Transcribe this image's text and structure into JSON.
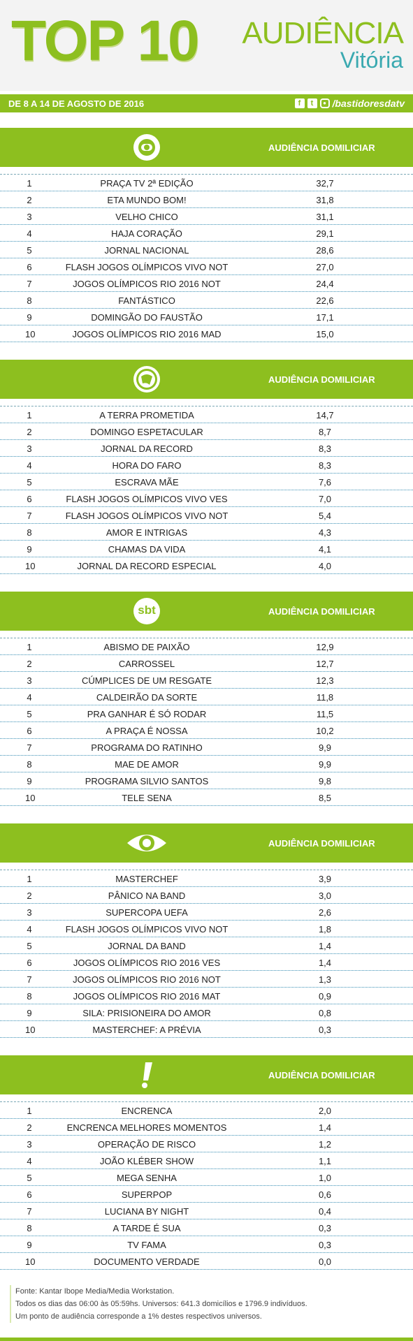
{
  "header": {
    "top_word": "TOP",
    "top_num": "10",
    "aud_line1": "AUDIÊNCIA",
    "aud_line2": "Vitória"
  },
  "datebar": {
    "date": "DE 8 A 14 DE AGOSTO DE 2016",
    "handle": "/bastidoresdatv"
  },
  "colors": {
    "accent": "#8dbf1f",
    "teal": "#3aa9b0"
  },
  "sections": [
    {
      "logo": "globo-logo-icon",
      "title": "AUDIÊNCIA DOMILICIAR",
      "rows": [
        {
          "rank": "1",
          "name": "PRAÇA TV 2ª EDIÇÃO",
          "value": "32,7"
        },
        {
          "rank": "2",
          "name": "ETA MUNDO BOM!",
          "value": "31,8"
        },
        {
          "rank": "3",
          "name": "VELHO CHICO",
          "value": "31,1"
        },
        {
          "rank": "4",
          "name": "HAJA CORAÇÃO",
          "value": "29,1"
        },
        {
          "rank": "5",
          "name": "JORNAL NACIONAL",
          "value": "28,6"
        },
        {
          "rank": "6",
          "name": "FLASH JOGOS OLÍMPICOS VIVO NOT",
          "value": "27,0"
        },
        {
          "rank": "7",
          "name": "JOGOS OLÍMPICOS RIO 2016 NOT",
          "value": "24,4"
        },
        {
          "rank": "8",
          "name": "FANTÁSTICO",
          "value": "22,6"
        },
        {
          "rank": "9",
          "name": "DOMINGÃO DO FAUSTÃO",
          "value": "17,1"
        },
        {
          "rank": "10",
          "name": "JOGOS OLÍMPICOS RIO 2016 MAD",
          "value": "15,0"
        }
      ]
    },
    {
      "logo": "record-logo-icon",
      "title": "AUDIÊNCIA DOMILICIAR",
      "rows": [
        {
          "rank": "1",
          "name": "A TERRA PROMETIDA",
          "value": "14,7"
        },
        {
          "rank": "2",
          "name": "DOMINGO ESPETACULAR",
          "value": "8,7"
        },
        {
          "rank": "3",
          "name": "JORNAL DA RECORD",
          "value": "8,3"
        },
        {
          "rank": "4",
          "name": "HORA DO FARO",
          "value": "8,3"
        },
        {
          "rank": "5",
          "name": "ESCRAVA MÃE",
          "value": "7,6"
        },
        {
          "rank": "6",
          "name": "FLASH JOGOS OLÍMPICOS VIVO VES",
          "value": "7,0"
        },
        {
          "rank": "7",
          "name": "FLASH JOGOS OLÍMPICOS VIVO NOT",
          "value": "5,4"
        },
        {
          "rank": "8",
          "name": "AMOR E INTRIGAS",
          "value": "4,3"
        },
        {
          "rank": "9",
          "name": "CHAMAS DA VIDA",
          "value": "4,1"
        },
        {
          "rank": "10",
          "name": "JORNAL DA RECORD ESPECIAL",
          "value": "4,0"
        }
      ]
    },
    {
      "logo": "sbt-logo-icon",
      "logo_text": "sbt",
      "title": "AUDIÊNCIA DOMILICIAR",
      "rows": [
        {
          "rank": "1",
          "name": "ABISMO DE PAIXÃO",
          "value": "12,9"
        },
        {
          "rank": "2",
          "name": "CARROSSEL",
          "value": "12,7"
        },
        {
          "rank": "3",
          "name": "CÚMPLICES DE UM RESGATE",
          "value": "12,3"
        },
        {
          "rank": "4",
          "name": "CALDEIRÃO DA SORTE",
          "value": "11,8"
        },
        {
          "rank": "5",
          "name": "PRA GANHAR É SÓ RODAR",
          "value": "11,5"
        },
        {
          "rank": "6",
          "name": "A PRAÇA É NOSSA",
          "value": "10,2"
        },
        {
          "rank": "7",
          "name": "PROGRAMA DO RATINHO",
          "value": "9,9"
        },
        {
          "rank": "8",
          "name": "MAE DE AMOR",
          "value": "9,9"
        },
        {
          "rank": "9",
          "name": "PROGRAMA SILVIO SANTOS",
          "value": "9,8"
        },
        {
          "rank": "10",
          "name": "TELE SENA",
          "value": "8,5"
        }
      ]
    },
    {
      "logo": "band-logo-icon",
      "title": "AUDIÊNCIA DOMILICIAR",
      "rows": [
        {
          "rank": "1",
          "name": "MASTERCHEF",
          "value": "3,9"
        },
        {
          "rank": "2",
          "name": "PÂNICO NA BAND",
          "value": "3,0"
        },
        {
          "rank": "3",
          "name": "SUPERCOPA UEFA",
          "value": "2,6"
        },
        {
          "rank": "4",
          "name": "FLASH JOGOS OLÍMPICOS VIVO NOT",
          "value": "1,8"
        },
        {
          "rank": "5",
          "name": "JORNAL DA BAND",
          "value": "1,4"
        },
        {
          "rank": "6",
          "name": "JOGOS OLÍMPICOS RIO 2016 VES",
          "value": "1,4"
        },
        {
          "rank": "7",
          "name": "JOGOS OLÍMPICOS RIO 2016 NOT",
          "value": "1,3"
        },
        {
          "rank": "8",
          "name": "JOGOS OLÍMPICOS RIO 2016 MAT",
          "value": "0,9"
        },
        {
          "rank": "9",
          "name": "SILA: PRISIONEIRA DO AMOR",
          "value": "0,8"
        },
        {
          "rank": "10",
          "name": "MASTERCHEF: A PRÉVIA",
          "value": "0,3"
        }
      ]
    },
    {
      "logo": "redetv-logo-icon",
      "title": "AUDIÊNCIA DOMILICIAR",
      "rows": [
        {
          "rank": "1",
          "name": "ENCRENCA",
          "value": "2,0"
        },
        {
          "rank": "2",
          "name": "ENCRENCA MELHORES MOMENTOS",
          "value": "1,4"
        },
        {
          "rank": "3",
          "name": "OPERAÇÃO DE RISCO",
          "value": "1,2"
        },
        {
          "rank": "4",
          "name": "JOÃO KLÉBER SHOW",
          "value": "1,1"
        },
        {
          "rank": "5",
          "name": "MEGA SENHA",
          "value": "1,0"
        },
        {
          "rank": "6",
          "name": "SUPERPOP",
          "value": "0,6"
        },
        {
          "rank": "7",
          "name": "LUCIANA BY NIGHT",
          "value": "0,4"
        },
        {
          "rank": "8",
          "name": "A TARDE É SUA",
          "value": "0,3"
        },
        {
          "rank": "9",
          "name": "TV FAMA",
          "value": "0,3"
        },
        {
          "rank": "10",
          "name": "DOCUMENTO VERDADE",
          "value": "0,0"
        }
      ]
    }
  ],
  "footer": {
    "line1": "Fonte: Kantar Ibope Media/Media Workstation.",
    "line2": "Todos os dias das 06:00 às 05:59hs. Universos: 641.3 domicílios e 1796.9 indivíduos.",
    "line3": "Um ponto de audiência corresponde a 1% destes respectivos universos."
  }
}
